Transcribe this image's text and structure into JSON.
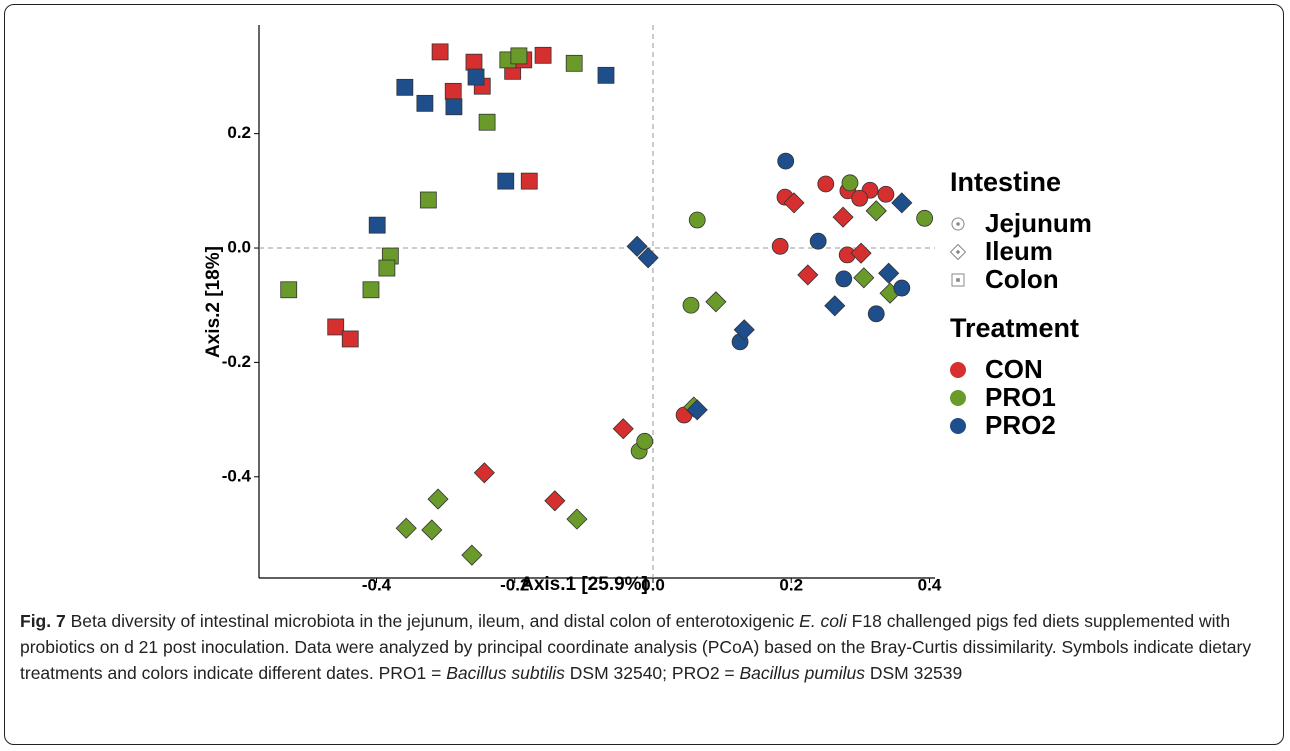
{
  "chart_data": {
    "type": "scatter",
    "xlabel": "Axis.1   [25.9%]",
    "ylabel": "Axis.2   [18%]",
    "xlim": [
      -0.57,
      0.408
    ],
    "ylim": [
      -0.577,
      0.39
    ],
    "xticks": [
      -0.4,
      -0.2,
      {
        "value": 0,
        "label": "0.0"
      },
      0.2,
      0.4
    ],
    "yticks": [
      -0.4,
      -0.2,
      {
        "value": 0,
        "label": "0.0"
      },
      0.2
    ],
    "reference_lines": {
      "x": 0,
      "y": 0
    },
    "shape_legend": {
      "title": "Intestine",
      "items": [
        "Jejunum",
        "Ileum",
        "Colon"
      ],
      "shapes": [
        "circle",
        "diamond",
        "square"
      ]
    },
    "color_legend_title": "Treatment",
    "series": [
      {
        "name": "CON",
        "color": "#d62f2f",
        "x": [
          -0.308,
          -0.259,
          -0.289,
          -0.247,
          -0.203,
          -0.187,
          -0.159,
          -0.179,
          -0.459,
          -0.438,
          0.184,
          0.191,
          0.25,
          0.282,
          0.314,
          0.337,
          0.281,
          0.045,
          0.299,
          0.204,
          0.275,
          0.323,
          0.301,
          0.224,
          -0.043,
          -0.244,
          -0.142
        ],
        "y": [
          0.343,
          0.325,
          0.274,
          0.283,
          0.309,
          0.329,
          0.337,
          0.117,
          -0.138,
          -0.159,
          0.003,
          0.089,
          0.112,
          0.1,
          0.101,
          0.094,
          -0.012,
          -0.292,
          0.087,
          0.079,
          0.054,
          0.065,
          -0.009,
          -0.047,
          -0.316,
          -0.393,
          -0.442
        ],
        "shape": [
          "square",
          "square",
          "square",
          "square",
          "square",
          "square",
          "square",
          "square",
          "square",
          "square",
          "circle",
          "circle",
          "circle",
          "circle",
          "circle",
          "circle",
          "circle",
          "circle",
          "circle",
          "diamond",
          "diamond",
          "diamond",
          "diamond",
          "diamond",
          "diamond",
          "diamond",
          "diamond"
        ]
      },
      {
        "name": "PRO1",
        "color": "#6a9a2a",
        "x": [
          -0.21,
          -0.194,
          -0.114,
          -0.24,
          -0.325,
          -0.38,
          -0.385,
          -0.408,
          -0.527,
          0.064,
          0.285,
          0.393,
          0.055,
          -0.02,
          -0.012,
          0.305,
          0.343,
          0.091,
          0.059,
          -0.357,
          -0.311,
          -0.32,
          -0.262,
          -0.11,
          0.323
        ],
        "y": [
          0.329,
          0.336,
          0.323,
          0.22,
          0.084,
          -0.014,
          -0.035,
          -0.073,
          -0.073,
          0.049,
          0.114,
          0.052,
          -0.1,
          -0.355,
          -0.338,
          -0.052,
          -0.079,
          -0.094,
          -0.278,
          -0.49,
          -0.439,
          -0.493,
          -0.537,
          -0.474,
          0.065
        ],
        "shape": [
          "square",
          "square",
          "square",
          "square",
          "square",
          "square",
          "square",
          "square",
          "square",
          "circle",
          "circle",
          "circle",
          "circle",
          "circle",
          "circle",
          "diamond",
          "diamond",
          "diamond",
          "diamond",
          "diamond",
          "diamond",
          "diamond",
          "diamond",
          "diamond",
          "diamond"
        ]
      },
      {
        "name": "PRO2",
        "color": "#1f4e8c",
        "x": [
          -0.359,
          -0.33,
          -0.288,
          -0.256,
          -0.068,
          -0.213,
          -0.399,
          0.192,
          0.239,
          0.276,
          0.323,
          0.126,
          0.36,
          -0.023,
          -0.007,
          0.36,
          0.341,
          0.263,
          0.132,
          0.064
        ],
        "y": [
          0.281,
          0.253,
          0.247,
          0.299,
          0.302,
          0.117,
          0.04,
          0.152,
          0.012,
          -0.054,
          -0.115,
          -0.164,
          -0.07,
          0.003,
          -0.017,
          0.079,
          -0.044,
          -0.101,
          -0.143,
          -0.283
        ],
        "shape": [
          "square",
          "square",
          "square",
          "square",
          "square",
          "square",
          "square",
          "circle",
          "circle",
          "circle",
          "circle",
          "circle",
          "circle",
          "diamond",
          "diamond",
          "diamond",
          "diamond",
          "diamond",
          "diamond",
          "diamond"
        ]
      }
    ]
  },
  "caption": [
    {
      "text": "Fig. 7",
      "style": "bold"
    },
    {
      "text": " Beta diversity of intestinal microbiota in the jejunum, ileum, and distal colon of enterotoxigenic "
    },
    {
      "text": "E. coli",
      "style": "italic"
    },
    {
      "text": " F18 challenged pigs fed diets supplemented with probiotics on d 21 post inoculation. Data were analyzed by principal coordinate analysis (PCoA) based on the Bray-Curtis dissimilarity. Symbols indicate dietary treatments and colors indicate different dates. PRO1 = "
    },
    {
      "text": "Bacillus subtilis",
      "style": "italic"
    },
    {
      "text": " DSM 32540; PRO2 = "
    },
    {
      "text": "Bacillus pumilus",
      "style": "italic"
    },
    {
      "text": " DSM 32539"
    }
  ]
}
